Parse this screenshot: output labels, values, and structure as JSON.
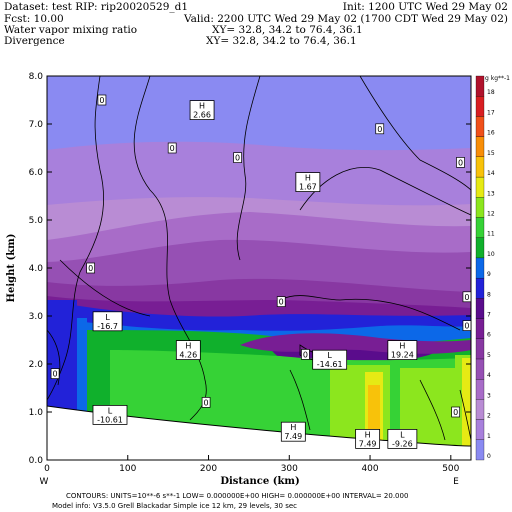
{
  "header": {
    "dataset": "Dataset: test  RIP: rip20020529_d1",
    "init": "Init: 1200 UTC Wed 29 May 02",
    "fcst": "Fcst:    10.00",
    "valid": "Valid: 2200 UTC Wed 29 May 02 (1700 CDT Wed 29 May 02)",
    "field1": "Water vapor mixing ratio",
    "field1_xy": "XY=   32.8, 34.2 to   76.4, 36.1",
    "field2": "Divergence",
    "field2_xy": "XY=   32.8, 34.2 to   76.4, 36.1"
  },
  "footer": {
    "contours": "CONTOURS:  UNITS=10**-6 s**-1   LOW=  0.000000E+00   HIGH=  0.000000E+00   INTERVAL=     20.000",
    "model": "Model info: V3.5.0    Grell      Blackadar   Simple ice     12 km,   29 levels,    30 sec"
  },
  "colorbar": {
    "unit": "g kg**-1",
    "labels": [
      "0",
      "1",
      "2",
      "3",
      "4",
      "5",
      "6",
      "7",
      "8",
      "9",
      "10",
      "11",
      "12",
      "13",
      "14",
      "15",
      "16",
      "17",
      "18"
    ],
    "colors": [
      "#8a8af2",
      "#a880dc",
      "#b98cd4",
      "#a86cc8",
      "#9650b4",
      "#8838a2",
      "#781e94",
      "#5a0c8c",
      "#2222d8",
      "#0c68e8",
      "#10b02c",
      "#36d236",
      "#8ce61e",
      "#e6ea14",
      "#f8c20a",
      "#f88e08",
      "#f0501a",
      "#d81e22",
      "#b0122c"
    ]
  },
  "chart_data": {
    "type": "heatmap",
    "title": "Water vapor mixing ratio",
    "xlabel": "Distance (km)",
    "ylabel": "Height (km)",
    "xlim": [
      0,
      525
    ],
    "ylim": [
      0,
      8
    ],
    "x_ticks": [
      "0",
      "100",
      "200",
      "300",
      "400",
      "500"
    ],
    "y_ticks": [
      "0.0",
      "1.0",
      "2.0",
      "3.0",
      "4.0",
      "5.0",
      "6.0",
      "7.0",
      "8.0"
    ],
    "x_end_labels": [
      "W",
      "E"
    ],
    "contour_labels": [
      {
        "text": "0",
        "x": 68,
        "y": 7.5
      },
      {
        "text": "0",
        "x": 155,
        "y": 6.5
      },
      {
        "text": "0",
        "x": 236,
        "y": 6.3
      },
      {
        "text": "0",
        "x": 412,
        "y": 6.9
      },
      {
        "text": "0",
        "x": 512,
        "y": 6.2
      },
      {
        "text": "0",
        "x": 54,
        "y": 4.0
      },
      {
        "text": "0",
        "x": 290,
        "y": 3.3
      },
      {
        "text": "0",
        "x": 520,
        "y": 3.4
      },
      {
        "text": "0",
        "x": 520,
        "y": 2.8
      },
      {
        "text": "0",
        "x": 320,
        "y": 2.2
      },
      {
        "text": "0",
        "x": 10,
        "y": 1.8
      },
      {
        "text": "0",
        "x": 197,
        "y": 1.2
      },
      {
        "text": "0",
        "x": 506,
        "y": 1.0
      }
    ],
    "extrema": [
      {
        "type": "H",
        "value": "2.66",
        "x": 192,
        "y": 7.3
      },
      {
        "type": "H",
        "value": "1.67",
        "x": 323,
        "y": 5.8
      },
      {
        "type": "L",
        "value": "-16.7",
        "x": 75,
        "y": 2.9
      },
      {
        "type": "H",
        "value": "4.26",
        "x": 175,
        "y": 2.3
      },
      {
        "type": "L",
        "value": "-14.61",
        "x": 350,
        "y": 2.1
      },
      {
        "type": "H",
        "value": "19.24",
        "x": 440,
        "y": 2.3
      },
      {
        "type": "L",
        "value": "-10.61",
        "x": 78,
        "y": 0.95
      },
      {
        "type": "H",
        "value": "7.49",
        "x": 305,
        "y": 0.6
      },
      {
        "type": "H",
        "value": "7.49",
        "x": 397,
        "y": 0.45
      },
      {
        "type": "L",
        "value": "-9.26",
        "x": 440,
        "y": 0.45
      }
    ]
  }
}
